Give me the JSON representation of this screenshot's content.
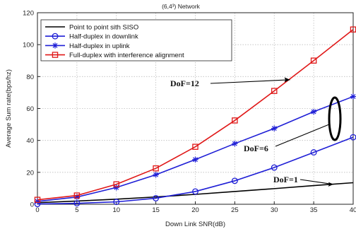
{
  "chart_data": {
    "type": "line",
    "title": "(6,4³) Network",
    "xlabel": "Down Link SNR(dB)",
    "ylabel": "Average Sum rate(bps/hz)",
    "xlim": [
      0,
      40
    ],
    "ylim": [
      0,
      120
    ],
    "xticks": [
      "0",
      "5",
      "10",
      "15",
      "20",
      "25",
      "30",
      "35",
      "40"
    ],
    "yticks": [
      "0",
      "20",
      "40",
      "60",
      "80",
      "100",
      "120"
    ],
    "grid": true,
    "legend_position": "top-left",
    "x": [
      0,
      5,
      10,
      15,
      20,
      25,
      30,
      35,
      40
    ],
    "series": [
      {
        "name": "Point to point sith SISO",
        "color": "#000000",
        "marker": "none",
        "values": [
          1.0,
          2.0,
          3.2,
          4.6,
          6.2,
          8.0,
          9.8,
          11.7,
          13.5
        ]
      },
      {
        "name": "Half-duplex in downlink",
        "color": "#1f1fd6",
        "marker": "circle",
        "values": [
          0.2,
          0.6,
          1.5,
          3.8,
          8.0,
          14.7,
          23.0,
          32.5,
          42.0
        ]
      },
      {
        "name": "Half-duplex in uplink",
        "color": "#1f1fd6",
        "marker": "star",
        "values": [
          1.8,
          4.5,
          10.5,
          18.5,
          28.0,
          38.0,
          47.5,
          58.0,
          67.5
        ]
      },
      {
        "name": "Full-duplex with interference alignment",
        "color": "#e01818",
        "marker": "square",
        "values": [
          2.8,
          5.5,
          12.5,
          22.5,
          36.0,
          52.5,
          71.0,
          90.0,
          109.5
        ]
      }
    ],
    "annotations": [
      {
        "text": "DoF=12",
        "target_x": 32,
        "target_y": 78
      },
      {
        "text": "DoF=6",
        "target_x": 37,
        "target_y": 48
      },
      {
        "text": "DoF=1",
        "target_x": 37.5,
        "target_y": 12.5
      }
    ],
    "colors": {
      "grid": "#bdbdbd",
      "axis": "#222222",
      "ellipse": "#000000"
    }
  }
}
